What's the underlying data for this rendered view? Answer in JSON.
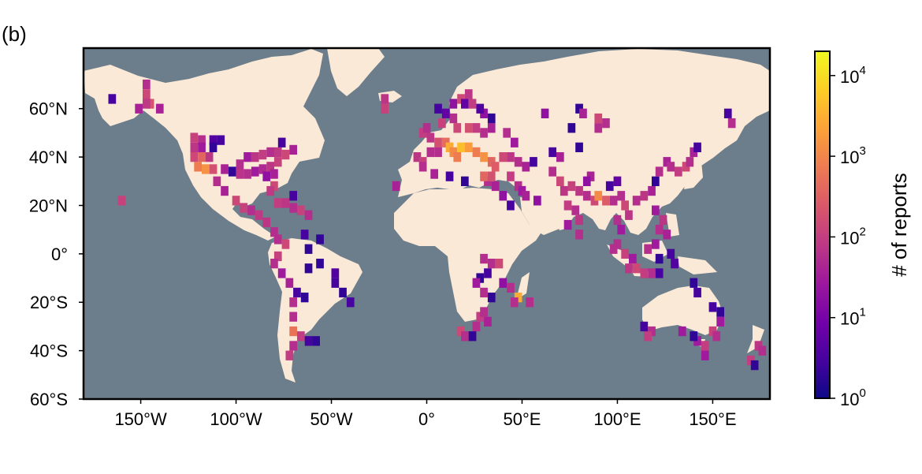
{
  "figure": {
    "panel_label": "(b)"
  },
  "colors": {
    "ocean": "#6c7d8b",
    "land": "#fbe9d7",
    "frame": "#000000",
    "colormap": [
      "#0d0887",
      "#46039f",
      "#7201a8",
      "#9c179e",
      "#bd3786",
      "#d8576b",
      "#ed7953",
      "#fb9f3a",
      "#fdca26",
      "#f0f921"
    ]
  },
  "chart_data": {
    "type": "heatmap",
    "projection": "geographic",
    "xlim": [
      -180,
      180
    ],
    "ylim": [
      -60,
      85
    ],
    "xticks": [
      {
        "value": -150,
        "label": "150°W"
      },
      {
        "value": -100,
        "label": "100°W"
      },
      {
        "value": -50,
        "label": "50°W"
      },
      {
        "value": 0,
        "label": "0°"
      },
      {
        "value": 50,
        "label": "50°E"
      },
      {
        "value": 100,
        "label": "100°E"
      },
      {
        "value": 150,
        "label": "150°E"
      }
    ],
    "yticks": [
      {
        "value": 60,
        "label": "60°N"
      },
      {
        "value": 40,
        "label": "40°N"
      },
      {
        "value": 20,
        "label": "20°N"
      },
      {
        "value": 0,
        "label": "0°"
      },
      {
        "value": -20,
        "label": "20°S"
      },
      {
        "value": -40,
        "label": "40°S"
      },
      {
        "value": -60,
        "label": "60°S"
      }
    ],
    "colorbar": {
      "label": "# of reports",
      "scale": "log",
      "range": [
        1,
        20000
      ],
      "ticks": [
        {
          "base": "10",
          "exp": "0",
          "value": 1
        },
        {
          "base": "10",
          "exp": "1",
          "value": 10
        },
        {
          "base": "10",
          "exp": "2",
          "value": 100
        },
        {
          "base": "10",
          "exp": "3",
          "value": 1000
        },
        {
          "base": "10",
          "exp": "4",
          "value": 10000
        }
      ]
    },
    "cell_size_deg": 4,
    "cells": [
      [
        -147,
        70,
        60
      ],
      [
        -147,
        66,
        150
      ],
      [
        -145,
        62,
        220
      ],
      [
        -147,
        62,
        90
      ],
      [
        -151,
        60,
        40
      ],
      [
        -140,
        60,
        40
      ],
      [
        -165,
        64,
        3
      ],
      [
        -122,
        48,
        120
      ],
      [
        -118,
        47,
        60
      ],
      [
        -112,
        47,
        4
      ],
      [
        -108,
        47,
        3
      ],
      [
        -122,
        44,
        80
      ],
      [
        -118,
        44,
        30
      ],
      [
        -112,
        44,
        2
      ],
      [
        -122,
        40,
        150
      ],
      [
        -118,
        40,
        400
      ],
      [
        -114,
        40,
        80
      ],
      [
        -120,
        36,
        800
      ],
      [
        -116,
        35,
        1500
      ],
      [
        -112,
        35,
        200
      ],
      [
        -106,
        35,
        40
      ],
      [
        -102,
        34,
        2
      ],
      [
        -98,
        37,
        60
      ],
      [
        -94,
        40,
        30
      ],
      [
        -90,
        40,
        80
      ],
      [
        -86,
        41,
        100
      ],
      [
        -82,
        42,
        60
      ],
      [
        -78,
        42,
        90
      ],
      [
        -74,
        41,
        150
      ],
      [
        -70,
        43,
        40
      ],
      [
        -78,
        38,
        120
      ],
      [
        -82,
        36,
        80
      ],
      [
        -86,
        35,
        50
      ],
      [
        -90,
        34,
        30
      ],
      [
        -94,
        33,
        60
      ],
      [
        -98,
        33,
        70
      ],
      [
        -84,
        32,
        20
      ],
      [
        -80,
        33,
        40
      ],
      [
        -80,
        28,
        150
      ],
      [
        -82,
        26,
        90
      ],
      [
        -76,
        46,
        3
      ],
      [
        -110,
        30,
        60
      ],
      [
        -106,
        26,
        40
      ],
      [
        -100,
        22,
        150
      ],
      [
        -96,
        19,
        120
      ],
      [
        -92,
        18,
        60
      ],
      [
        -88,
        16,
        90
      ],
      [
        -84,
        13,
        80
      ],
      [
        -80,
        9,
        60
      ],
      [
        -74,
        21,
        80
      ],
      [
        -78,
        21,
        100
      ],
      [
        -70,
        19,
        60
      ],
      [
        -66,
        18,
        120
      ],
      [
        -62,
        16,
        60
      ],
      [
        -70,
        24,
        3
      ],
      [
        -160,
        22,
        120
      ],
      [
        -78,
        6,
        60
      ],
      [
        -74,
        4,
        150
      ],
      [
        -78,
        -1,
        120
      ],
      [
        -80,
        -4,
        60
      ],
      [
        -76,
        -8,
        30
      ],
      [
        -72,
        -12,
        40
      ],
      [
        -68,
        -16,
        3
      ],
      [
        -64,
        -18,
        2
      ],
      [
        -70,
        -20,
        60
      ],
      [
        -70,
        -26,
        60
      ],
      [
        -70,
        -32,
        600
      ],
      [
        -66,
        -34,
        100
      ],
      [
        -62,
        -36,
        3
      ],
      [
        -58,
        -36,
        2
      ],
      [
        -70,
        -38,
        60
      ],
      [
        -72,
        -42,
        100
      ],
      [
        -62,
        2,
        2
      ],
      [
        -56,
        -4,
        2
      ],
      [
        -48,
        -8,
        4
      ],
      [
        -48,
        -12,
        3
      ],
      [
        -44,
        -16,
        2
      ],
      [
        -40,
        -20,
        3
      ],
      [
        -62,
        -6,
        2
      ],
      [
        -64,
        8,
        3
      ],
      [
        -56,
        6,
        2
      ],
      [
        -22,
        64,
        80
      ],
      [
        -22,
        60,
        120
      ],
      [
        -16,
        28,
        40
      ],
      [
        -5,
        40,
        80
      ],
      [
        -2,
        38,
        120
      ],
      [
        2,
        42,
        60
      ],
      [
        -2,
        50,
        100
      ],
      [
        2,
        48,
        80
      ],
      [
        6,
        46,
        200
      ],
      [
        10,
        46,
        500
      ],
      [
        12,
        44,
        3000
      ],
      [
        14,
        42,
        1200
      ],
      [
        16,
        40,
        800
      ],
      [
        18,
        44,
        5000
      ],
      [
        22,
        44,
        2000
      ],
      [
        26,
        42,
        800
      ],
      [
        30,
        40,
        1500
      ],
      [
        34,
        38,
        400
      ],
      [
        36,
        36,
        300
      ],
      [
        40,
        40,
        150
      ],
      [
        44,
        40,
        80
      ],
      [
        48,
        38,
        60
      ],
      [
        52,
        36,
        40
      ],
      [
        56,
        38,
        3
      ],
      [
        6,
        42,
        60
      ],
      [
        0,
        52,
        60
      ],
      [
        8,
        54,
        120
      ],
      [
        14,
        56,
        60
      ],
      [
        16,
        52,
        150
      ],
      [
        22,
        52,
        200
      ],
      [
        26,
        52,
        100
      ],
      [
        30,
        50,
        60
      ],
      [
        34,
        52,
        40
      ],
      [
        18,
        64,
        150
      ],
      [
        14,
        62,
        20
      ],
      [
        20,
        62,
        6
      ],
      [
        24,
        62,
        100
      ],
      [
        22,
        66,
        80
      ],
      [
        10,
        58,
        6
      ],
      [
        6,
        60,
        3
      ],
      [
        30,
        58,
        20
      ],
      [
        34,
        56,
        2
      ],
      [
        42,
        50,
        60
      ],
      [
        46,
        46,
        30
      ],
      [
        28,
        60,
        4
      ],
      [
        -2,
        36,
        60
      ],
      [
        4,
        33,
        40
      ],
      [
        12,
        32,
        3
      ],
      [
        20,
        30,
        2
      ],
      [
        32,
        30,
        60
      ],
      [
        36,
        28,
        40
      ],
      [
        40,
        24,
        20
      ],
      [
        44,
        20,
        3
      ],
      [
        30,
        32,
        400
      ],
      [
        34,
        32,
        200
      ],
      [
        44,
        32,
        100
      ],
      [
        48,
        28,
        60
      ],
      [
        50,
        26,
        30
      ],
      [
        52,
        24,
        40
      ],
      [
        58,
        22,
        20
      ],
      [
        66,
        34,
        60
      ],
      [
        70,
        30,
        150
      ],
      [
        72,
        26,
        80
      ],
      [
        76,
        28,
        120
      ],
      [
        80,
        26,
        80
      ],
      [
        84,
        24,
        60
      ],
      [
        88,
        22,
        150
      ],
      [
        90,
        24,
        1200
      ],
      [
        94,
        22,
        300
      ],
      [
        98,
        22,
        60
      ],
      [
        74,
        20,
        100
      ],
      [
        78,
        18,
        60
      ],
      [
        80,
        14,
        80
      ],
      [
        74,
        12,
        30
      ],
      [
        80,
        8,
        60
      ],
      [
        86,
        32,
        40
      ],
      [
        84,
        30,
        20
      ],
      [
        96,
        28,
        3
      ],
      [
        70,
        40,
        40
      ],
      [
        66,
        42,
        3
      ],
      [
        80,
        44,
        2
      ],
      [
        76,
        52,
        2
      ],
      [
        80,
        60,
        2
      ],
      [
        62,
        58,
        20
      ],
      [
        90,
        52,
        60
      ],
      [
        94,
        54,
        60
      ],
      [
        90,
        56,
        150
      ],
      [
        82,
        58,
        40
      ],
      [
        100,
        30,
        6
      ],
      [
        102,
        24,
        60
      ],
      [
        104,
        20,
        150
      ],
      [
        106,
        16,
        80
      ],
      [
        100,
        14,
        60
      ],
      [
        102,
        10,
        30
      ],
      [
        100,
        4,
        60
      ],
      [
        98,
        2,
        60
      ],
      [
        104,
        0,
        120
      ],
      [
        108,
        -2,
        30
      ],
      [
        106,
        -6,
        80
      ],
      [
        110,
        -6,
        150
      ],
      [
        114,
        -8,
        100
      ],
      [
        118,
        -8,
        60
      ],
      [
        122,
        -8,
        3
      ],
      [
        116,
        2,
        60
      ],
      [
        120,
        4,
        30
      ],
      [
        122,
        10,
        60
      ],
      [
        124,
        14,
        80
      ],
      [
        120,
        18,
        30
      ],
      [
        126,
        8,
        40
      ],
      [
        128,
        0,
        3
      ],
      [
        130,
        -4,
        4
      ],
      [
        122,
        -2,
        2
      ],
      [
        110,
        22,
        60
      ],
      [
        114,
        24,
        80
      ],
      [
        118,
        26,
        40
      ],
      [
        120,
        30,
        2
      ],
      [
        122,
        34,
        60
      ],
      [
        126,
        38,
        40
      ],
      [
        128,
        36,
        60
      ],
      [
        132,
        34,
        100
      ],
      [
        136,
        36,
        150
      ],
      [
        138,
        38,
        60
      ],
      [
        140,
        42,
        40
      ],
      [
        142,
        44,
        3
      ],
      [
        160,
        54,
        60
      ],
      [
        158,
        58,
        3
      ],
      [
        154,
        -28,
        30
      ],
      [
        150,
        -32,
        120
      ],
      [
        152,
        -34,
        60
      ],
      [
        146,
        -38,
        100
      ],
      [
        142,
        -36,
        30
      ],
      [
        140,
        -34,
        2
      ],
      [
        134,
        -32,
        30
      ],
      [
        118,
        -32,
        60
      ],
      [
        116,
        -34,
        100
      ],
      [
        114,
        -30,
        3
      ],
      [
        146,
        -42,
        30
      ],
      [
        174,
        -38,
        80
      ],
      [
        170,
        -44,
        100
      ],
      [
        172,
        -46,
        2
      ],
      [
        176,
        -40,
        60
      ],
      [
        142,
        -16,
        3
      ],
      [
        140,
        -12,
        2
      ],
      [
        150,
        -22,
        3
      ],
      [
        154,
        -24,
        2
      ],
      [
        30,
        -2,
        60
      ],
      [
        34,
        -4,
        60
      ],
      [
        38,
        -4,
        150
      ],
      [
        32,
        -8,
        3
      ],
      [
        28,
        -10,
        2
      ],
      [
        26,
        -12,
        30
      ],
      [
        30,
        -16,
        60
      ],
      [
        34,
        -18,
        2
      ],
      [
        40,
        -12,
        20
      ],
      [
        44,
        -14,
        60
      ],
      [
        48,
        -18,
        3000
      ],
      [
        46,
        -20,
        60
      ],
      [
        54,
        -20,
        60
      ],
      [
        18,
        -32,
        150
      ],
      [
        20,
        -34,
        60
      ],
      [
        26,
        -30,
        60
      ],
      [
        28,
        -26,
        100
      ],
      [
        30,
        -24,
        60
      ],
      [
        32,
        -28,
        40
      ],
      [
        24,
        -34,
        2
      ]
    ]
  }
}
